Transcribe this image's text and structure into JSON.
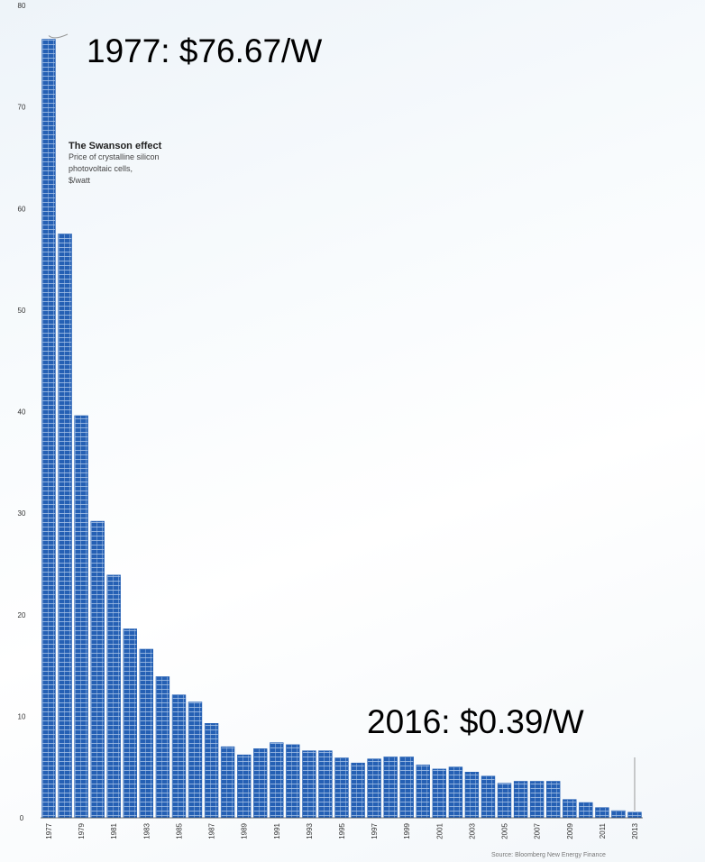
{
  "annotations": {
    "top": "1977: $76.67/W",
    "bottom": "2016: $0.39/W"
  },
  "legend": {
    "title": "The Swanson effect",
    "line1": "Price of crystalline silicon",
    "line2": "photovoltaic cells,",
    "line3": "$/watt"
  },
  "source": "Source: Bloomberg New Energy Finance",
  "colors": {
    "bar": "#2560b4",
    "bar_grid": "#a9c4e8",
    "axis": "#444444"
  },
  "chart_data": {
    "type": "bar",
    "categories": [
      "1977",
      "1978",
      "1979",
      "1980",
      "1981",
      "1982",
      "1983",
      "1984",
      "1985",
      "1986",
      "1987",
      "1988",
      "1989",
      "1990",
      "1991",
      "1992",
      "1993",
      "1994",
      "1995",
      "1996",
      "1997",
      "1998",
      "1999",
      "2000",
      "2001",
      "2002",
      "2003",
      "2004",
      "2005",
      "2006",
      "2007",
      "2008",
      "2009",
      "2010",
      "2011",
      "2012",
      "2013"
    ],
    "tick_labels": [
      "1977",
      "1979",
      "1981",
      "1983",
      "1985",
      "1987",
      "1989",
      "1991",
      "1993",
      "1995",
      "1997",
      "1999",
      "2001",
      "2003",
      "2005",
      "2007",
      "2009",
      "2011",
      "2013"
    ],
    "values": [
      76.67,
      57.5,
      39.6,
      29.2,
      23.9,
      18.6,
      16.6,
      13.9,
      12.1,
      11.4,
      9.3,
      7.0,
      6.2,
      6.8,
      7.4,
      7.2,
      6.6,
      6.6,
      5.9,
      5.4,
      5.8,
      6.0,
      6.0,
      5.2,
      4.8,
      5.0,
      4.5,
      4.1,
      3.4,
      3.6,
      3.6,
      3.6,
      1.8,
      1.5,
      1.0,
      0.7,
      0.55
    ],
    "yticks": [
      0,
      10,
      20,
      30,
      40,
      50,
      60,
      70,
      80
    ],
    "ylim": [
      0,
      80
    ],
    "grid": false
  }
}
